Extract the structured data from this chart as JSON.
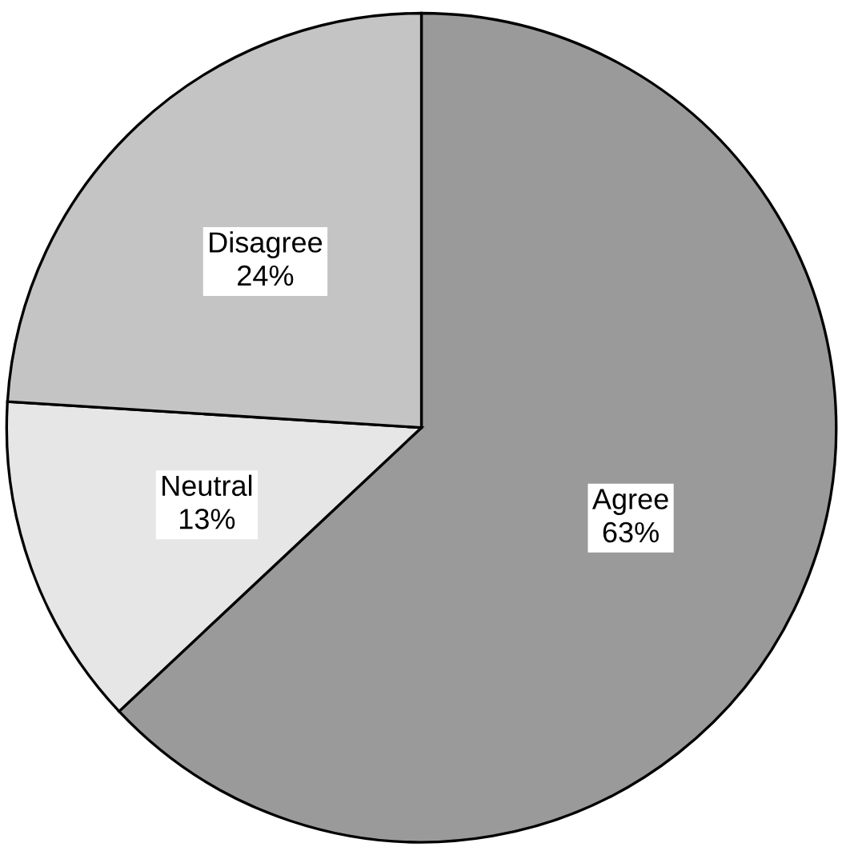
{
  "chart_data": {
    "type": "pie",
    "categories": [
      "Agree",
      "Neutral",
      "Disagree"
    ],
    "values": [
      63,
      13,
      24
    ],
    "colors": [
      "#9a9a9a",
      "#e6e6e6",
      "#c4c4c4"
    ],
    "value_labels": [
      "63%",
      "13%",
      "24%"
    ]
  }
}
